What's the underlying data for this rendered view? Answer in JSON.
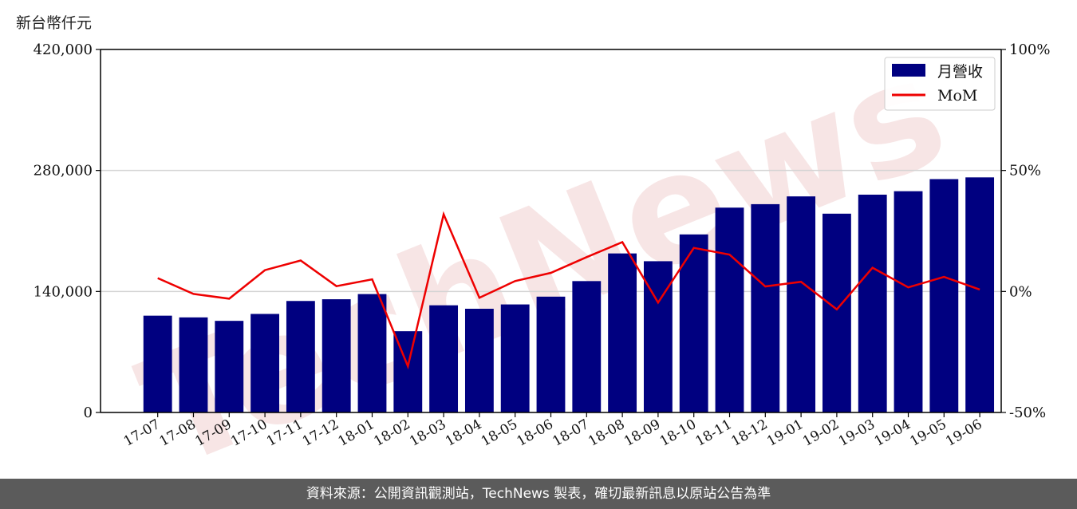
{
  "y_unit_label": "新台幣仟元",
  "footer_text": "資料來源：公開資訊觀測站，TechNews 製表，確切最新訊息以原站公告為準",
  "watermark": "TechNews",
  "colors": {
    "bar": "#000080",
    "line": "#ee0000",
    "grid": "#d4d4d4",
    "watermark": "#f0cfcf",
    "footer_bg": "#5b5b5b"
  },
  "chart_data": {
    "type": "bar",
    "categories": [
      "17-07",
      "17-08",
      "17-09",
      "17-10",
      "17-11",
      "17-12",
      "18-01",
      "18-02",
      "18-03",
      "18-04",
      "18-05",
      "18-06",
      "18-07",
      "18-08",
      "18-09",
      "18-10",
      "18-11",
      "18-12",
      "19-01",
      "19-02",
      "19-03",
      "19-04",
      "19-05",
      "19-06"
    ],
    "series": [
      {
        "name": "月營收",
        "kind": "bar",
        "axis": "left",
        "values": [
          112000,
          110000,
          106000,
          114000,
          129000,
          131000,
          137000,
          94000,
          124000,
          120000,
          125000,
          134000,
          152000,
          184000,
          175000,
          206000,
          237000,
          241000,
          250000,
          230000,
          252000,
          256000,
          270000,
          272000
        ]
      },
      {
        "name": "MoM",
        "kind": "line",
        "axis": "right",
        "values": [
          5.5,
          -1.0,
          -3.0,
          8.8,
          12.8,
          2.2,
          5.0,
          -30.9,
          31.9,
          -2.6,
          4.3,
          7.7,
          14.2,
          20.4,
          -4.6,
          18.0,
          15.2,
          2.1,
          4.0,
          -7.4,
          9.8,
          1.7,
          6.0,
          0.8
        ]
      }
    ],
    "ylim_left": [
      0,
      420000
    ],
    "yticks_left": [
      "0",
      "140,000",
      "280,000",
      "420,000"
    ],
    "ylim_right": [
      -50,
      100
    ],
    "yticks_right": [
      "-50%",
      "0%",
      "50%",
      "100%"
    ],
    "grid": "horizontal",
    "legend": "top-right"
  }
}
